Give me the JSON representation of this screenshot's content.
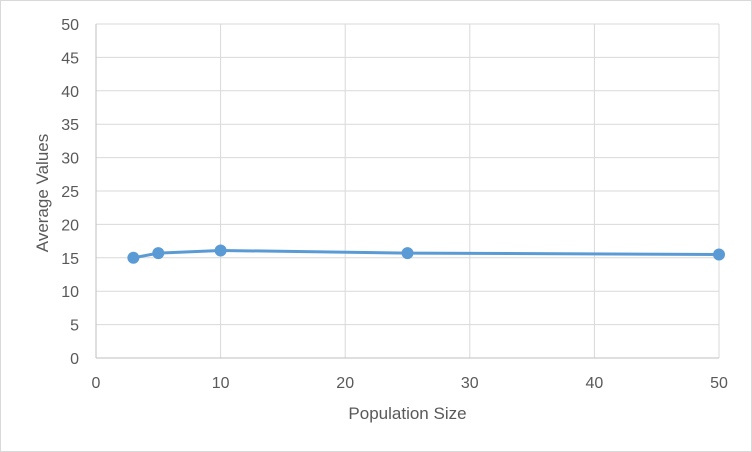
{
  "chart_data": {
    "type": "scatter",
    "title": "",
    "xlabel": "Population Size",
    "ylabel": "Average Values",
    "xlim": [
      0,
      50
    ],
    "ylim": [
      0,
      50
    ],
    "xticks": [
      "0",
      "10",
      "20",
      "30",
      "40",
      "50"
    ],
    "yticks": [
      "0",
      "5",
      "10",
      "15",
      "20",
      "25",
      "30",
      "35",
      "40",
      "45",
      "50"
    ],
    "grid": true,
    "legend": "none",
    "series": [
      {
        "color": "#5b9bd5",
        "x": [
          3,
          5,
          10,
          25,
          50
        ],
        "y": [
          15.0,
          15.7,
          16.1,
          15.7,
          15.5
        ]
      }
    ]
  }
}
